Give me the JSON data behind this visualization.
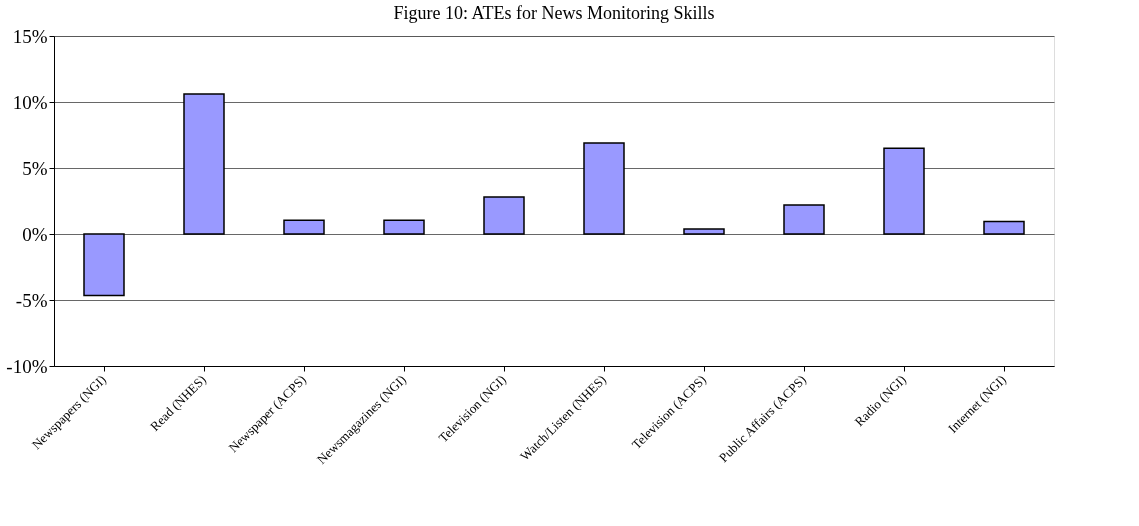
{
  "chart_data": {
    "type": "bar",
    "title": "Figure 10: ATEs for News Monitoring Skills",
    "categories": [
      "Newspapers (NGI)",
      "Read (NHES)",
      "Newspaper (ACPS)",
      "Newsmagazines (NGI)",
      "Television (NGI)",
      "Watch/Listen (NHES)",
      "Television (ACPS)",
      "Public Affairs (ACPS)",
      "Radio (NGI)",
      "Internet (NGI)"
    ],
    "values": [
      -4.65,
      10.6,
      1.05,
      1.05,
      2.8,
      6.9,
      0.38,
      2.2,
      6.5,
      0.95
    ],
    "color": "#9999ff",
    "ylim": [
      -10,
      15
    ],
    "yticks": [
      {
        "value": -10,
        "label": "-10%"
      },
      {
        "value": -5,
        "label": "-5%"
      },
      {
        "value": 0,
        "label": "0%"
      },
      {
        "value": 5,
        "label": "5%"
      },
      {
        "value": 10,
        "label": "10%"
      },
      {
        "value": 15,
        "label": "15%"
      }
    ],
    "grid": "y"
  }
}
